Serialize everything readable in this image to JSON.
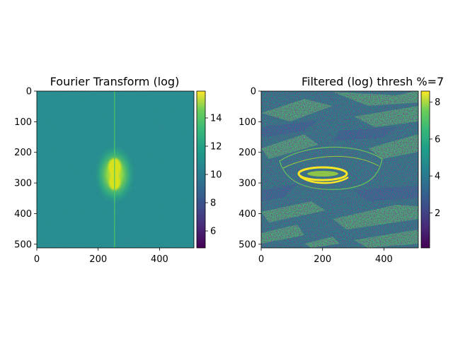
{
  "chart_data": [
    {
      "type": "heatmap",
      "title": "Fourier Transform (log)",
      "xlim": [
        0,
        512
      ],
      "ylim": [
        512,
        0
      ],
      "x_ticks": [
        0,
        200,
        400
      ],
      "y_ticks": [
        0,
        100,
        200,
        300,
        400,
        500
      ],
      "colormap": "viridis",
      "colorbar": {
        "min": 4.8,
        "max": 15.9,
        "ticks": [
          6,
          8,
          10,
          12,
          14
        ]
      },
      "description_values": {
        "background_level": 10,
        "center_peak": 15
      }
    },
    {
      "type": "heatmap",
      "title": "Filtered (log)   thresh %=7",
      "xlim": [
        0,
        512
      ],
      "ylim": [
        512,
        0
      ],
      "x_ticks": [
        0,
        200,
        400
      ],
      "y_ticks": [
        0,
        100,
        200,
        300,
        400,
        500
      ],
      "colormap": "viridis",
      "colorbar": {
        "min": 0.1,
        "max": 8.6,
        "ticks": [
          2,
          4,
          6,
          8
        ]
      },
      "description_values": {
        "background_level": 4.5,
        "feature_peak": 8.5
      }
    }
  ],
  "colors": {
    "viridis_low": "#440154",
    "viridis_mid": "#21918c",
    "viridis_high": "#fde725"
  }
}
